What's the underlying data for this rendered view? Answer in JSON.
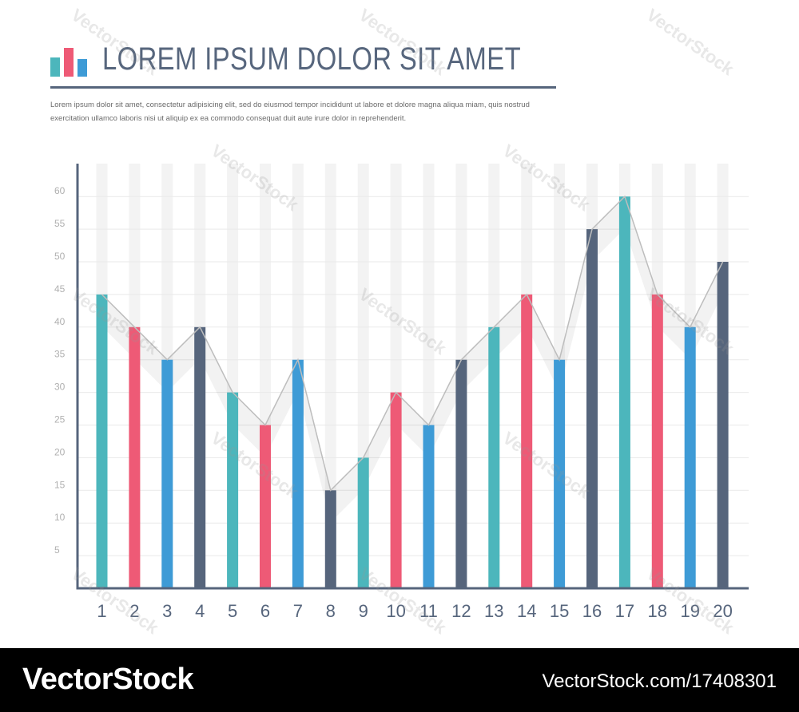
{
  "header": {
    "title": "LOREM IPSUM DOLOR SIT AMET",
    "description_line1": "Lorem ipsum dolor sit amet, consectetur adipisicing elit, sed do eiusmod tempor incididunt ut labore et dolore magna aliqua miam, quis nostrud",
    "description_line2": "exercitation ullamco laboris nisi ut aliquip ex ea commodo consequat duit aute irure dolor in reprehenderit.",
    "icon": "bar-chart-icon",
    "icon_colors": [
      "#4cb6bc",
      "#ee5a76",
      "#3e9bd6"
    ]
  },
  "palette": {
    "teal": "#4cb6bc",
    "pink": "#ee5a76",
    "blue": "#3e9bd6",
    "slate": "#56657c"
  },
  "chart_data": {
    "type": "bar",
    "categories": [
      "1",
      "2",
      "3",
      "4",
      "5",
      "6",
      "7",
      "8",
      "9",
      "10",
      "11",
      "12",
      "13",
      "14",
      "15",
      "16",
      "17",
      "18",
      "19",
      "20"
    ],
    "values": [
      45,
      40,
      35,
      40,
      30,
      25,
      35,
      15,
      20,
      30,
      25,
      35,
      40,
      45,
      35,
      55,
      60,
      45,
      40,
      50
    ],
    "bar_colors": [
      "#4cb6bc",
      "#ee5a76",
      "#3e9bd6",
      "#56657c",
      "#4cb6bc",
      "#ee5a76",
      "#3e9bd6",
      "#56657c",
      "#4cb6bc",
      "#ee5a76",
      "#3e9bd6",
      "#56657c",
      "#4cb6bc",
      "#ee5a76",
      "#3e9bd6",
      "#56657c",
      "#4cb6bc",
      "#ee5a76",
      "#3e9bd6",
      "#56657c"
    ],
    "overlay": "line connecting bar tops",
    "yticks": [
      "5",
      "10",
      "15",
      "20",
      "25",
      "30",
      "35",
      "40",
      "45",
      "50",
      "55",
      "60"
    ],
    "ylim": [
      0,
      65
    ],
    "title": "",
    "xlabel": "",
    "ylabel": "",
    "grid": true
  },
  "footer": {
    "brand": "VectorStock",
    "credit": "VectorStock.com/17408301",
    "watermark": "VectorStock"
  }
}
